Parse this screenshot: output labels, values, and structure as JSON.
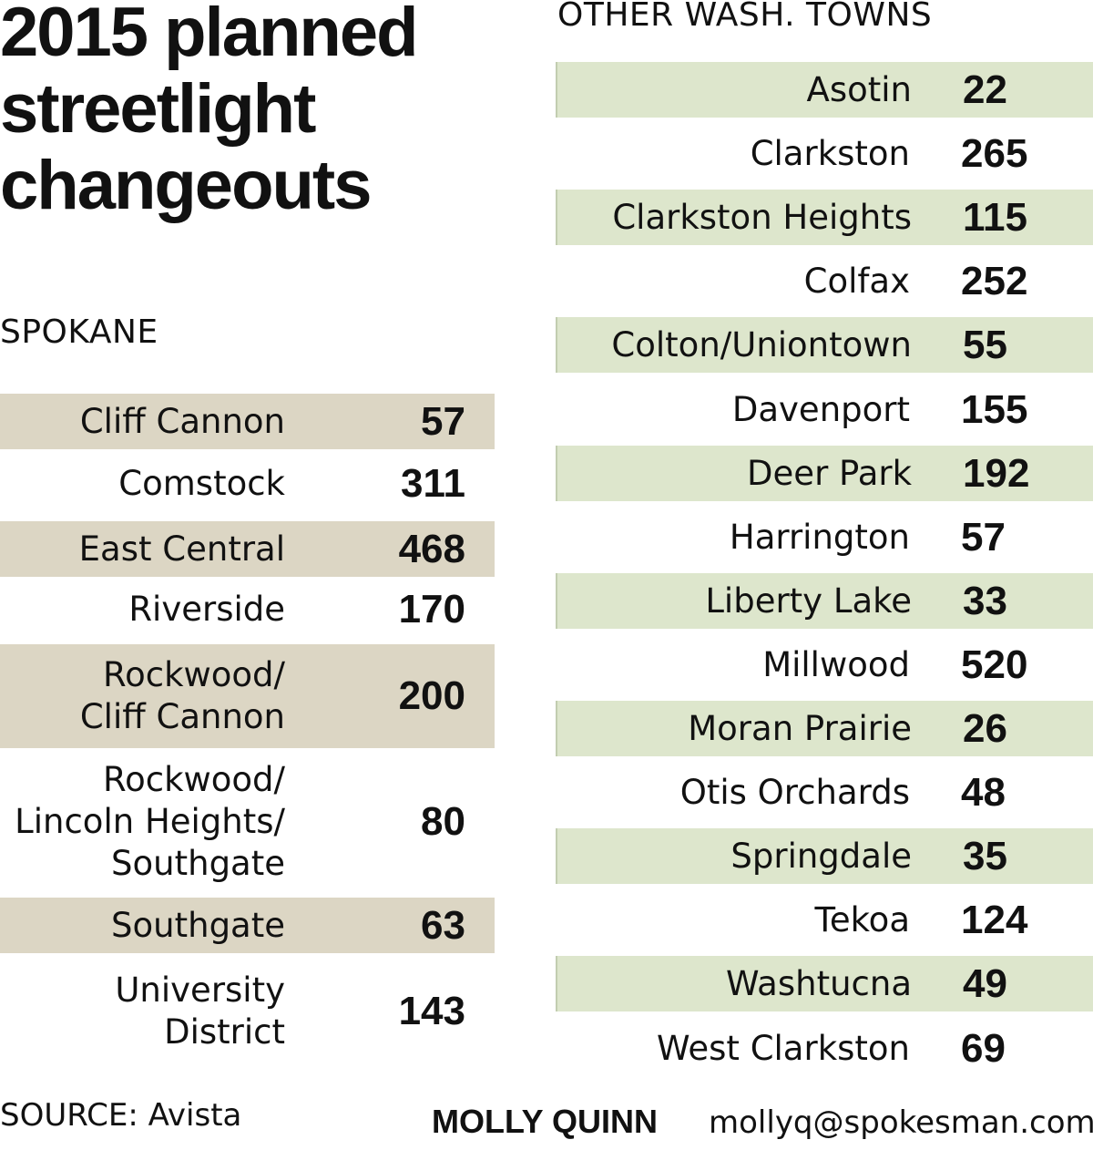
{
  "title_lines": [
    "2015 planned",
    "streetlight",
    "changeouts"
  ],
  "chart_data": [
    {
      "type": "table",
      "title": "SPOKANE",
      "categories": [
        "Cliff Cannon",
        "Comstock",
        "East Central",
        "Riverside",
        "Rockwood/\nCliff Cannon",
        "Rockwood/\nLincoln Heights/\nSouthgate",
        "Southgate",
        "University\nDistrict"
      ],
      "values": [
        57,
        311,
        468,
        170,
        200,
        80,
        63,
        143
      ]
    },
    {
      "type": "table",
      "title": "OTHER WASH. TOWNS",
      "categories": [
        "Asotin",
        "Clarkston",
        "Clarkston Heights",
        "Colfax",
        "Colton/Uniontown",
        "Davenport",
        "Deer Park",
        "Harrington",
        "Liberty Lake",
        "Millwood",
        "Moran Prairie",
        "Otis Orchards",
        "Springdale",
        "Tekoa",
        "Washtucna",
        "West Clarkston"
      ],
      "values": [
        22,
        265,
        115,
        252,
        55,
        155,
        192,
        57,
        33,
        520,
        26,
        48,
        35,
        124,
        49,
        69
      ]
    }
  ],
  "colors": {
    "spokane_shade": "#dcd6c4",
    "other_shade": "#dde6cc"
  },
  "footer": {
    "source": "SOURCE: Avista",
    "byline": "MOLLY QUINN",
    "email": "mollyq@spokesman.com"
  }
}
